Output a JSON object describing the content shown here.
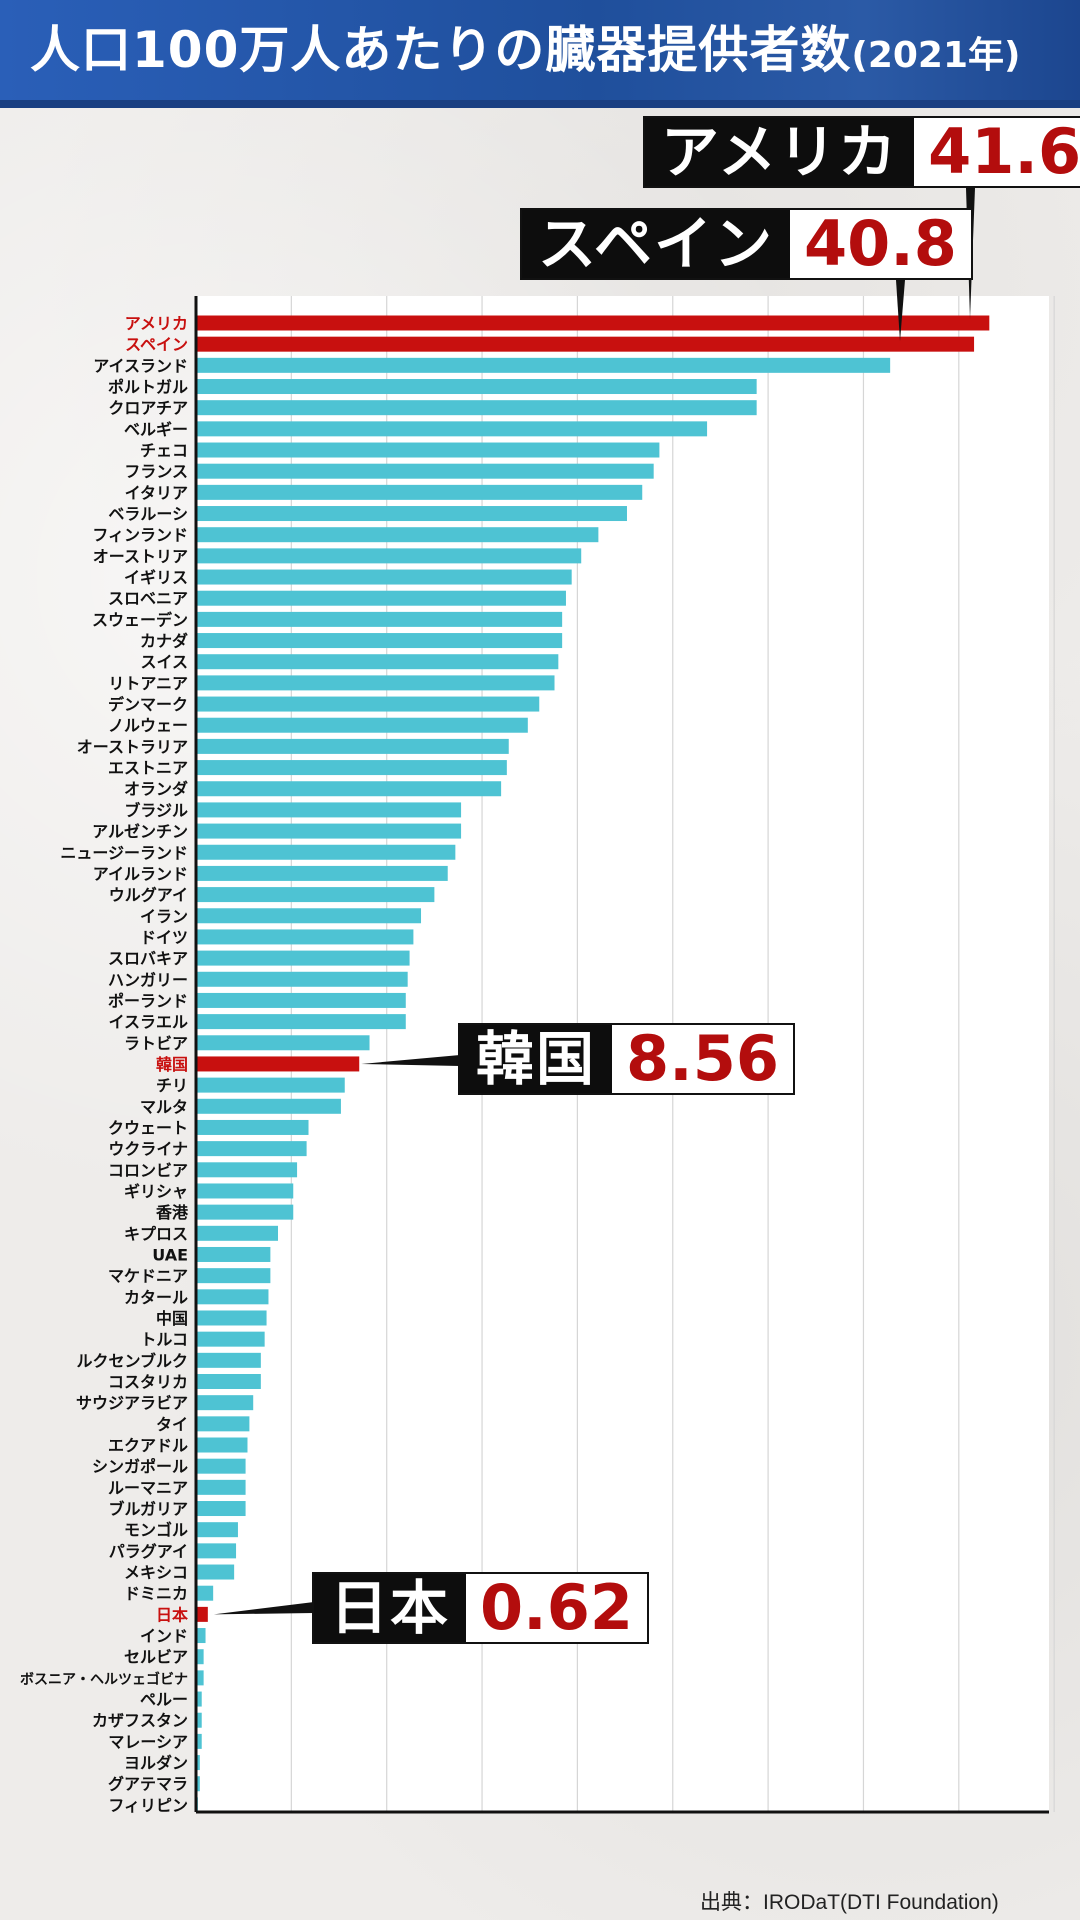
{
  "title": "人口100万人あたりの臓器提供者数",
  "title_sub": "(2021年)",
  "source": "出典：IRODaT(DTI Foundation)",
  "colors": {
    "highlight": "#c8100f",
    "bar": "#4ec3d3",
    "header": "#1f4f9c"
  },
  "callouts": [
    {
      "name": "アメリカ",
      "value": "41.6"
    },
    {
      "name": "スペイン",
      "value": "40.8"
    },
    {
      "name": "韓国",
      "value": "8.56"
    },
    {
      "name": "日本",
      "value": "0.62"
    }
  ],
  "chart_data": {
    "type": "bar",
    "orientation": "horizontal",
    "xlim": [
      0,
      45
    ],
    "grid": true,
    "categories": [
      "アメリカ",
      "スペイン",
      "アイスランド",
      "ポルトガル",
      "クロアチア",
      "ベルギー",
      "チェコ",
      "フランス",
      "イタリア",
      "ベラルーシ",
      "フィンランド",
      "オーストリア",
      "イギリス",
      "スロベニア",
      "スウェーデン",
      "カナダ",
      "スイス",
      "リトアニア",
      "デンマーク",
      "ノルウェー",
      "オーストラリア",
      "エストニア",
      "オランダ",
      "ブラジル",
      "アルゼンチン",
      "ニュージーランド",
      "アイルランド",
      "ウルグアイ",
      "イラン",
      "ドイツ",
      "スロバキア",
      "ハンガリー",
      "ポーランド",
      "イスラエル",
      "ラトビア",
      "韓国",
      "チリ",
      "マルタ",
      "クウェート",
      "ウクライナ",
      "コロンビア",
      "ギリシャ",
      "香港",
      "キプロス",
      "UAE",
      "マケドニア",
      "カタール",
      "中国",
      "トルコ",
      "ルクセンブルク",
      "コスタリカ",
      "サウジアラビア",
      "タイ",
      "エクアドル",
      "シンガポール",
      "ルーマニア",
      "ブルガリア",
      "モンゴル",
      "パラグアイ",
      "メキシコ",
      "ドミニカ",
      "日本",
      "インド",
      "セルビア",
      "ボスニア・ヘルツェゴビナ",
      "ペルー",
      "カザフスタン",
      "マレーシア",
      "ヨルダン",
      "グアテマラ",
      "フィリピン"
    ],
    "values": [
      41.6,
      40.8,
      36.4,
      29.4,
      29.4,
      26.8,
      24.3,
      24.0,
      23.4,
      22.6,
      21.1,
      20.2,
      19.7,
      19.4,
      19.2,
      19.2,
      19.0,
      18.8,
      18.0,
      17.4,
      16.4,
      16.3,
      16.0,
      13.9,
      13.9,
      13.6,
      13.2,
      12.5,
      11.8,
      11.4,
      11.2,
      11.1,
      11.0,
      11.0,
      9.1,
      8.56,
      7.8,
      7.6,
      5.9,
      5.8,
      5.3,
      5.1,
      5.1,
      4.3,
      3.9,
      3.9,
      3.8,
      3.7,
      3.6,
      3.4,
      3.4,
      3.0,
      2.8,
      2.7,
      2.6,
      2.6,
      2.6,
      2.2,
      2.1,
      2.0,
      0.9,
      0.62,
      0.5,
      0.4,
      0.4,
      0.3,
      0.3,
      0.3,
      0.2,
      0.2,
      0.1
    ],
    "highlight": [
      "アメリカ",
      "スペイン",
      "韓国",
      "日本"
    ]
  }
}
